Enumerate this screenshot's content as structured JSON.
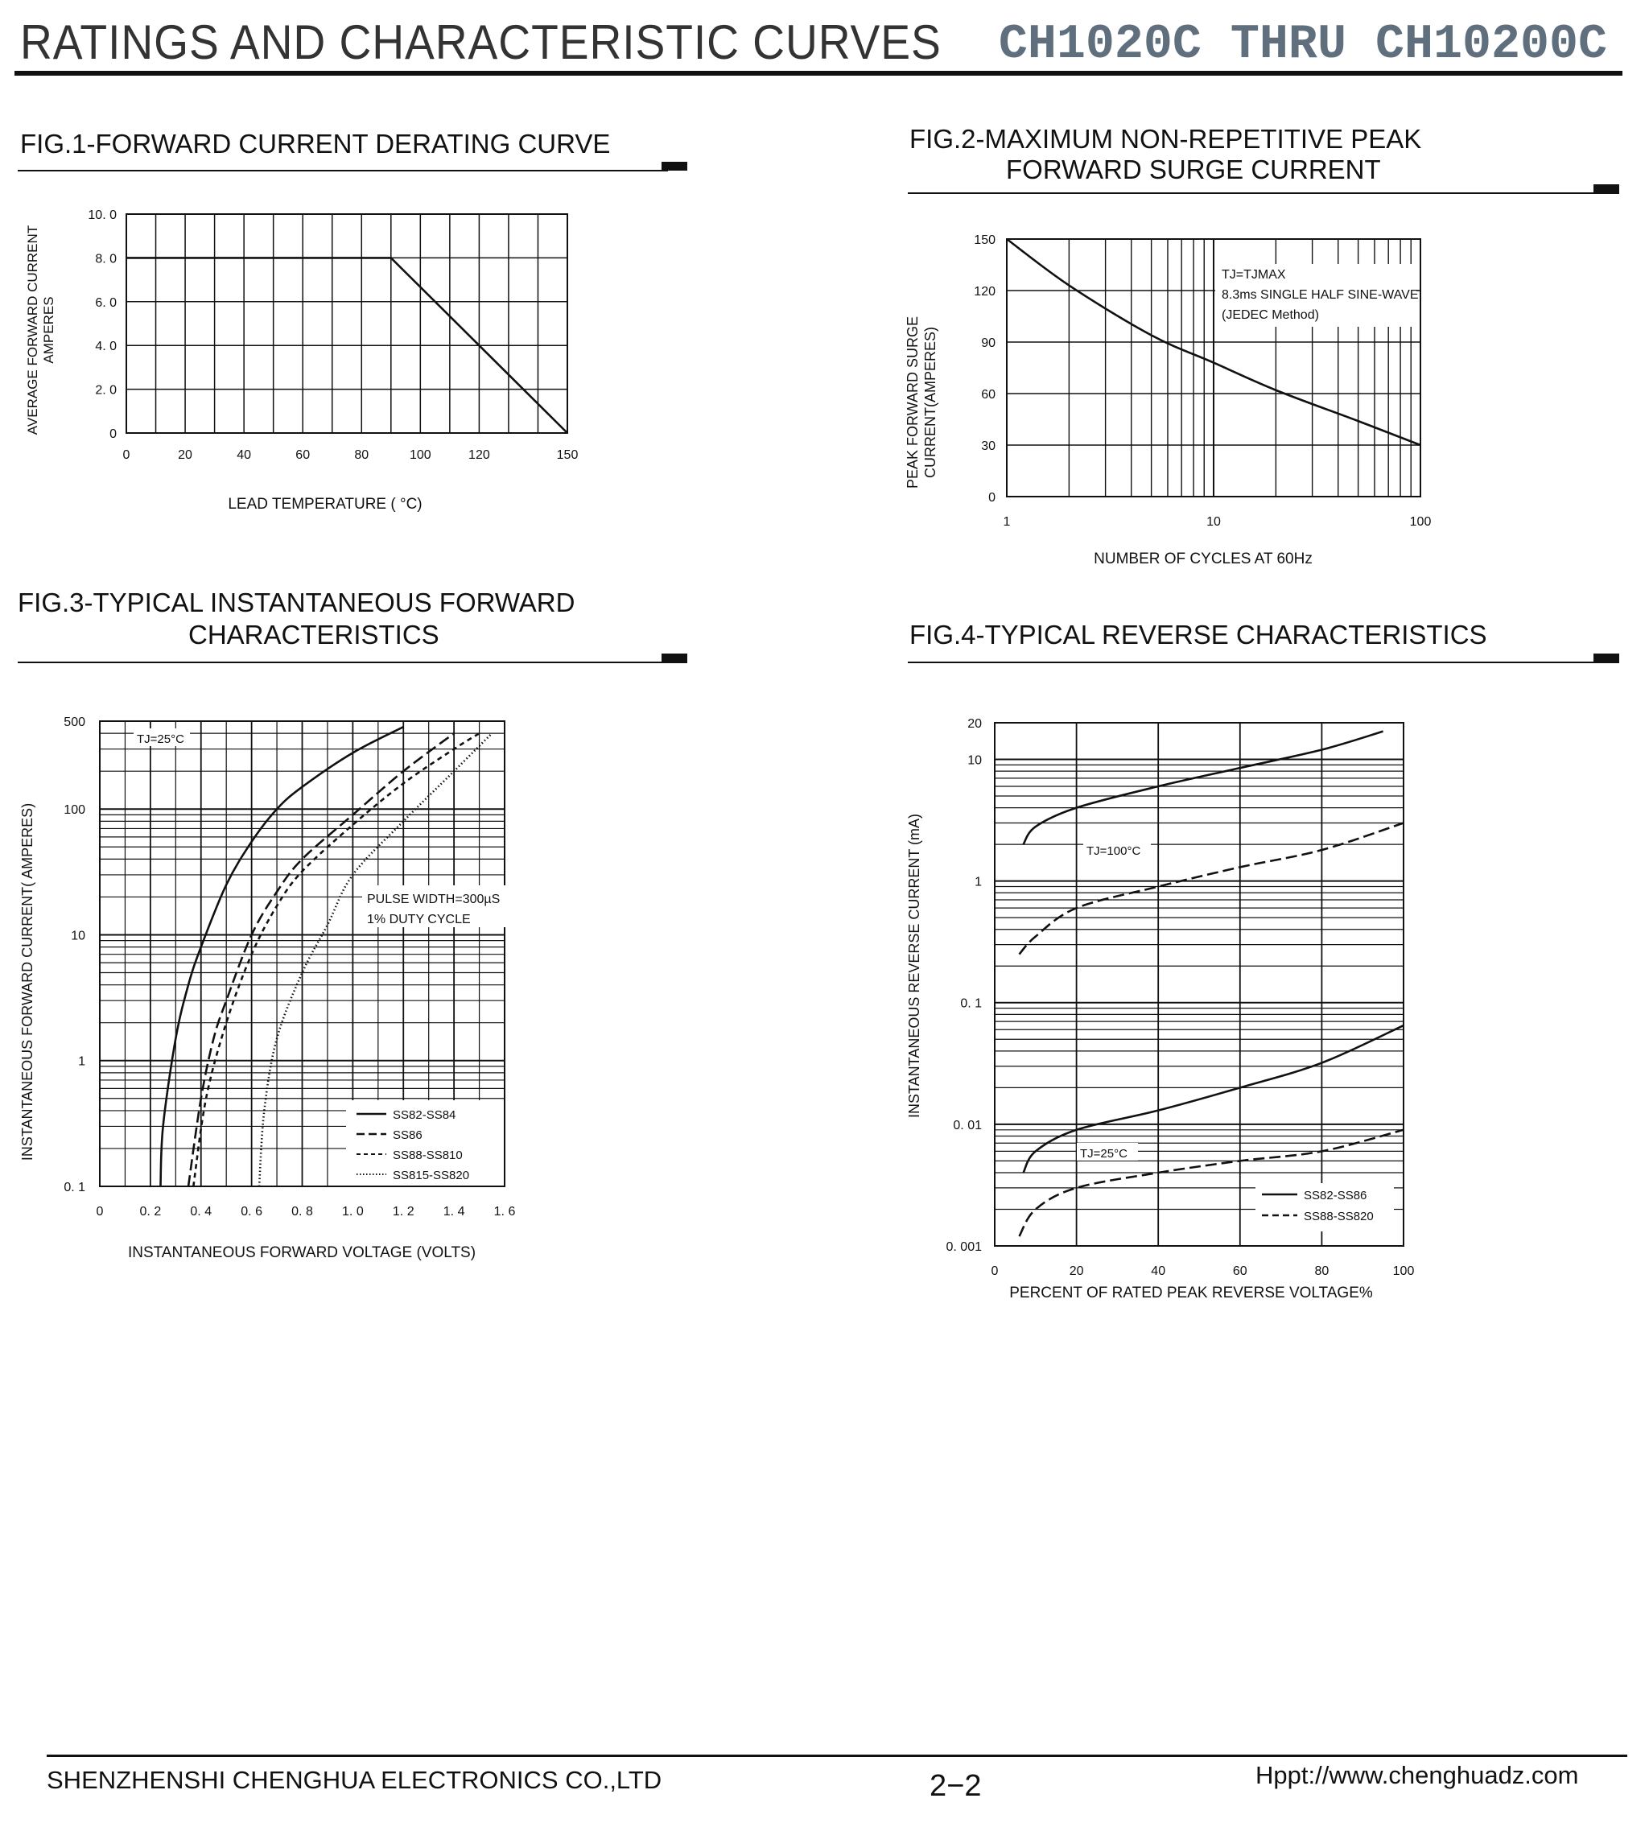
{
  "header": {
    "title": "RATINGS AND CHARACTERISTIC CURVES",
    "part_range": "CH1020C THRU CH10200C"
  },
  "footer": {
    "company": "SHENZHENSHI CHENGHUA ELECTRONICS CO.,LTD",
    "page": "2−2",
    "url": "Hppt://www.chenghuadz.com"
  },
  "figures": {
    "fig1": {
      "title": "FIG.1-FORWARD CURRENT DERATING CURVE",
      "ylabel_line1": "AVERAGE FORWARD CURRENT",
      "ylabel_line2": "AMPERES",
      "xlabel": "LEAD  TEMPERATURE ( °C)",
      "yticks": [
        "10. 0",
        "8. 0",
        "6. 0",
        "4. 0",
        "2. 0",
        "0"
      ],
      "xticks": [
        "0",
        "20",
        "40",
        "60",
        "80",
        "100",
        "120",
        "150"
      ]
    },
    "fig2": {
      "title_line1": "FIG.2-MAXIMUM NON-REPETITIVE PEAK",
      "title_line2": "FORWARD SURGE CURRENT",
      "ylabel_line1": "PEAK FORWARD SURGE",
      "ylabel_line2": "CURRENT(AMPERES)",
      "xlabel": "NUMBER OF CYCLES AT 60Hz",
      "yticks": [
        "150",
        "120",
        "90",
        "60",
        "30",
        "0"
      ],
      "xticks": [
        "1",
        "10",
        "100"
      ],
      "note_line1": "TJ=TJMAX",
      "note_line2": "8.3ms SINGLE HALF SINE-WAVE",
      "note_line3": "(JEDEC Method)"
    },
    "fig3": {
      "title_line1": "FIG.3-TYPICAL INSTANTANEOUS FORWARD",
      "title_line2": "CHARACTERISTICS",
      "ylabel": "INSTANTANEOUS FORWARD CURRENT( AMPERES)",
      "xlabel": "INSTANTANEOUS FORWARD VOLTAGE (VOLTS)",
      "yticks": [
        "500",
        "100",
        "10",
        "1",
        "0. 1"
      ],
      "xticks": [
        "0",
        "0. 2",
        "0. 4",
        "0. 6",
        "0. 8",
        "1. 0",
        "1. 2",
        "1. 4",
        "1. 6"
      ],
      "tj": "TJ=25°C",
      "pulse_line1": "PULSE WIDTH=300µS",
      "pulse_line2": "1% DUTY CYCLE",
      "legend": [
        "SS82-SS84",
        "SS86",
        "SS88-SS810",
        "SS815-SS820"
      ]
    },
    "fig4": {
      "title": "FIG.4-TYPICAL REVERSE CHARACTERISTICS",
      "ylabel": "INSTANTANEOUS REVERSE CURRENT  (mA)",
      "xlabel": "PERCENT OF RATED PEAK REVERSE VOLTAGE%",
      "yticks": [
        "20",
        "10",
        "1",
        "0. 1",
        "0. 01",
        "0. 001"
      ],
      "xticks": [
        "0",
        "20",
        "40",
        "60",
        "80",
        "100"
      ],
      "tj_high": "TJ=100°C",
      "tj_low": "TJ=25°C",
      "legend": [
        "SS82-SS86",
        "SS88-SS820"
      ]
    }
  },
  "chart_data": [
    {
      "type": "line",
      "title": "FIG.1-FORWARD CURRENT DERATING CURVE",
      "xlabel": "LEAD  TEMPERATURE ( °C)",
      "ylabel": "AVERAGE FORWARD CURRENT AMPERES",
      "xlim": [
        0,
        150
      ],
      "ylim": [
        0,
        10
      ],
      "grid": true,
      "series": [
        {
          "x": [
            0,
            90,
            150
          ],
          "y": [
            8,
            8,
            0
          ]
        }
      ]
    },
    {
      "type": "line",
      "title": "FIG.2-MAXIMUM NON-REPETITIVE PEAK FORWARD SURGE CURRENT",
      "xlabel": "NUMBER OF CYCLES AT 60Hz",
      "ylabel": "PEAK FORWARD SURGE CURRENT(AMPERES)",
      "xscale": "log",
      "xlim": [
        1,
        100
      ],
      "ylim": [
        0,
        150
      ],
      "grid": true,
      "series": [
        {
          "x": [
            1,
            2,
            5,
            10,
            20,
            50,
            100
          ],
          "y": [
            150,
            123,
            94,
            78,
            62,
            44,
            30
          ]
        }
      ]
    },
    {
      "type": "line",
      "title": "FIG.3-TYPICAL INSTANTANEOUS FORWARD CHARACTERISTICS",
      "xlabel": "INSTANTANEOUS FORWARD VOLTAGE (VOLTS)",
      "ylabel": "INSTANTANEOUS FORWARD CURRENT( AMPERES)",
      "yscale": "log",
      "xlim": [
        0,
        1.6
      ],
      "ylim": [
        0.1,
        500
      ],
      "grid": true,
      "legend": "bottom-right",
      "series": [
        {
          "name": "SS82-SS84",
          "style": "solid",
          "x": [
            0.24,
            0.25,
            0.3,
            0.35,
            0.4,
            0.5,
            0.6,
            0.7,
            0.8,
            1.0,
            1.2
          ],
          "y": [
            0.1,
            0.3,
            1.5,
            4,
            8,
            25,
            55,
            100,
            150,
            280,
            450
          ]
        },
        {
          "name": "SS86",
          "style": "dashed",
          "x": [
            0.35,
            0.4,
            0.45,
            0.5,
            0.6,
            0.7,
            0.8,
            1.0,
            1.2,
            1.4
          ],
          "y": [
            0.1,
            0.5,
            1.5,
            3,
            10,
            22,
            40,
            90,
            200,
            400
          ]
        },
        {
          "name": "SS88-SS810",
          "style": "short-dash",
          "x": [
            0.37,
            0.42,
            0.5,
            0.6,
            0.7,
            0.8,
            1.0,
            1.2,
            1.4,
            1.5
          ],
          "y": [
            0.1,
            0.5,
            2,
            7,
            17,
            32,
            75,
            160,
            300,
            400
          ]
        },
        {
          "name": "SS815-SS820",
          "style": "dotted",
          "x": [
            0.63,
            0.65,
            0.7,
            0.8,
            0.9,
            1.0,
            1.2,
            1.4,
            1.55
          ],
          "y": [
            0.1,
            0.4,
            1.5,
            5,
            12,
            30,
            80,
            200,
            400
          ]
        }
      ]
    },
    {
      "type": "line",
      "title": "FIG.4-TYPICAL REVERSE CHARACTERISTICS",
      "xlabel": "PERCENT OF RATED PEAK REVERSE VOLTAGE%",
      "ylabel": "INSTANTANEOUS REVERSE CURRENT  (mA)",
      "yscale": "log",
      "xlim": [
        0,
        100
      ],
      "ylim": [
        0.001,
        20
      ],
      "grid": true,
      "legend": "bottom-right",
      "series": [
        {
          "name": "SS82-SS86",
          "group": "TJ=100°C",
          "style": "solid",
          "x": [
            7,
            10,
            20,
            40,
            60,
            80,
            95
          ],
          "y": [
            2,
            2.8,
            4,
            6,
            8.5,
            12,
            17
          ]
        },
        {
          "name": "SS88-SS820",
          "group": "TJ=100°C",
          "style": "dashed",
          "x": [
            6,
            10,
            20,
            40,
            60,
            80,
            100
          ],
          "y": [
            0.25,
            0.35,
            0.6,
            0.9,
            1.3,
            1.8,
            3
          ]
        },
        {
          "name": "SS82-SS86",
          "group": "TJ=25°C",
          "style": "solid",
          "x": [
            7,
            10,
            20,
            40,
            60,
            80,
            100
          ],
          "y": [
            0.004,
            0.006,
            0.009,
            0.013,
            0.02,
            0.032,
            0.065
          ]
        },
        {
          "name": "SS88-SS820",
          "group": "TJ=25°C",
          "style": "dashed",
          "x": [
            6,
            10,
            20,
            40,
            60,
            80,
            100
          ],
          "y": [
            0.0012,
            0.002,
            0.003,
            0.004,
            0.005,
            0.006,
            0.009
          ]
        }
      ]
    }
  ]
}
